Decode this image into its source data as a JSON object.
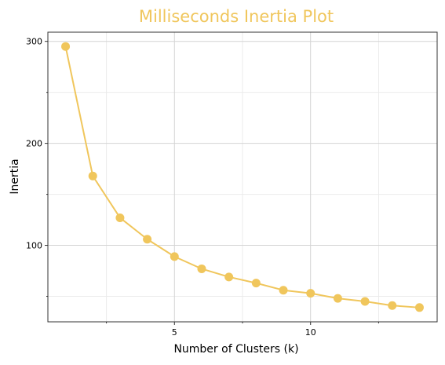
{
  "chart_data": {
    "type": "line",
    "title": "Milliseconds Inertia Plot",
    "xlabel": "Number of Clusters (k)",
    "ylabel": "Inertia",
    "x": [
      1,
      2,
      3,
      4,
      5,
      6,
      7,
      8,
      9,
      10,
      11,
      12,
      13,
      14
    ],
    "series": [
      {
        "values": [
          295,
          168,
          127,
          106,
          89,
          77,
          69,
          63,
          56,
          53,
          48,
          45,
          41,
          39
        ]
      }
    ],
    "xlim": [
      0.35,
      14.65
    ],
    "ylim": [
      25,
      309
    ],
    "x_major_ticks": [
      5,
      10
    ],
    "x_minor_ticks": [
      2.5,
      7.5,
      12.5
    ],
    "y_major_ticks": [
      100,
      200,
      300
    ],
    "y_minor_ticks": [
      50,
      150,
      250
    ],
    "grid": true,
    "colors": {
      "line": "#f0c65c",
      "marker": "#f0c65c",
      "title": "#f0c65c",
      "frame": "#333333",
      "grid_major": "#d4d4d4",
      "grid_minor": "#ebebeb"
    }
  }
}
